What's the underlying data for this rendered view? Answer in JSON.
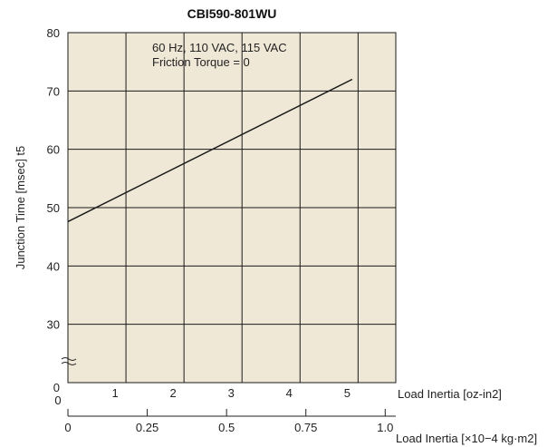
{
  "chart_data": {
    "type": "line",
    "title": "CBI590-801WU",
    "ylabel": "Junction Time [msec] t5",
    "xlabel": "Load Inertia [oz-in2]",
    "xlabel_secondary": "Load Inertia [×10−4 kg·m2]",
    "annotation_lines": [
      "60 Hz, 110 VAC, 115 VAC",
      "Friction Torque = 0"
    ],
    "xlim": [
      0,
      5.65
    ],
    "ylim": [
      20,
      80
    ],
    "y_axis_break": true,
    "grid": true,
    "x_ticks": [
      "1",
      "2",
      "3",
      "4",
      "5"
    ],
    "x_origin_label": "0",
    "y_ticks": [
      "30",
      "40",
      "50",
      "60",
      "70",
      "80"
    ],
    "y_origin_label": "0",
    "secondary_x_ticks": [
      {
        "label": "0",
        "value": 0
      },
      {
        "label": "0.25",
        "value": 0.25
      },
      {
        "label": "0.5",
        "value": 0.5
      },
      {
        "label": "0.75",
        "value": 0.75
      },
      {
        "label": "1.0",
        "value": 1.0
      }
    ],
    "series": [
      {
        "x": [
          0,
          4.9
        ],
        "y": [
          47.6,
          72
        ]
      }
    ],
    "plot_bg": "#efe8d6",
    "grid_color": "#1a1a1a",
    "line_color": "#1a1a1a"
  }
}
